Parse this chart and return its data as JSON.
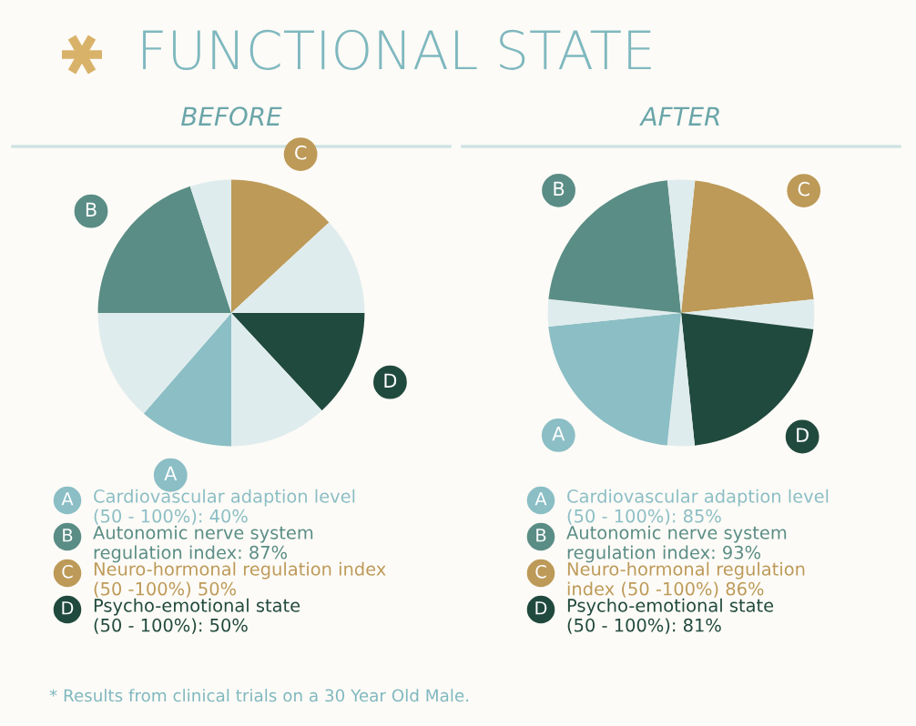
{
  "chart_data": [
    {
      "type": "other",
      "title": "FUNCTIONAL STATE",
      "annotations": [
        "* Results from clinical trials on a 30 Year Old Male."
      ]
    },
    {
      "type": "pie",
      "title": "BEFORE",
      "categories": [
        "C",
        null,
        "D",
        null,
        "A",
        null,
        "B",
        null
      ],
      "values": [
        13.1,
        11.9,
        13.1,
        11.9,
        11.4,
        13.6,
        20,
        5
      ],
      "colors": [
        "#bd9a58",
        "#dfeced",
        "#214a3e",
        "#dfeced",
        "#8bbec5",
        "#dfeced",
        "#5a8d85",
        "#dfeced"
      ],
      "annotations": [
        "Cardiovascular adaption level\n(50 - 100%): 40%",
        "Autonomic nerve system\nregulation index: 87%",
        "Neuro-hormonal regulation index\n(50 -100%) 50%",
        "Psycho-emotional state\n(50 - 100%): 50%"
      ]
    },
    {
      "type": "pie",
      "title": "AFTER",
      "categories": [
        "C",
        null,
        "D",
        null,
        "A",
        null,
        "B",
        null
      ],
      "values": [
        21.7,
        3.6,
        21.4,
        3.3,
        21.7,
        3.3,
        21.7,
        3.3
      ],
      "colors": [
        "#bd9a58",
        "#dfeced",
        "#214a3e",
        "#dfeced",
        "#8bbec5",
        "#dfeced",
        "#5a8d85",
        "#dfeced"
      ],
      "annotations": [
        "Cardiovascular adaption level\n(50 - 100%): 85%",
        "Autonomic nerve system\nregulation index: 93%",
        "Neuro-hormonal regulation\nindex (50 -100%) 86%",
        "Psycho-emotional state\n(50 - 100%): 81%"
      ]
    }
  ]
}
